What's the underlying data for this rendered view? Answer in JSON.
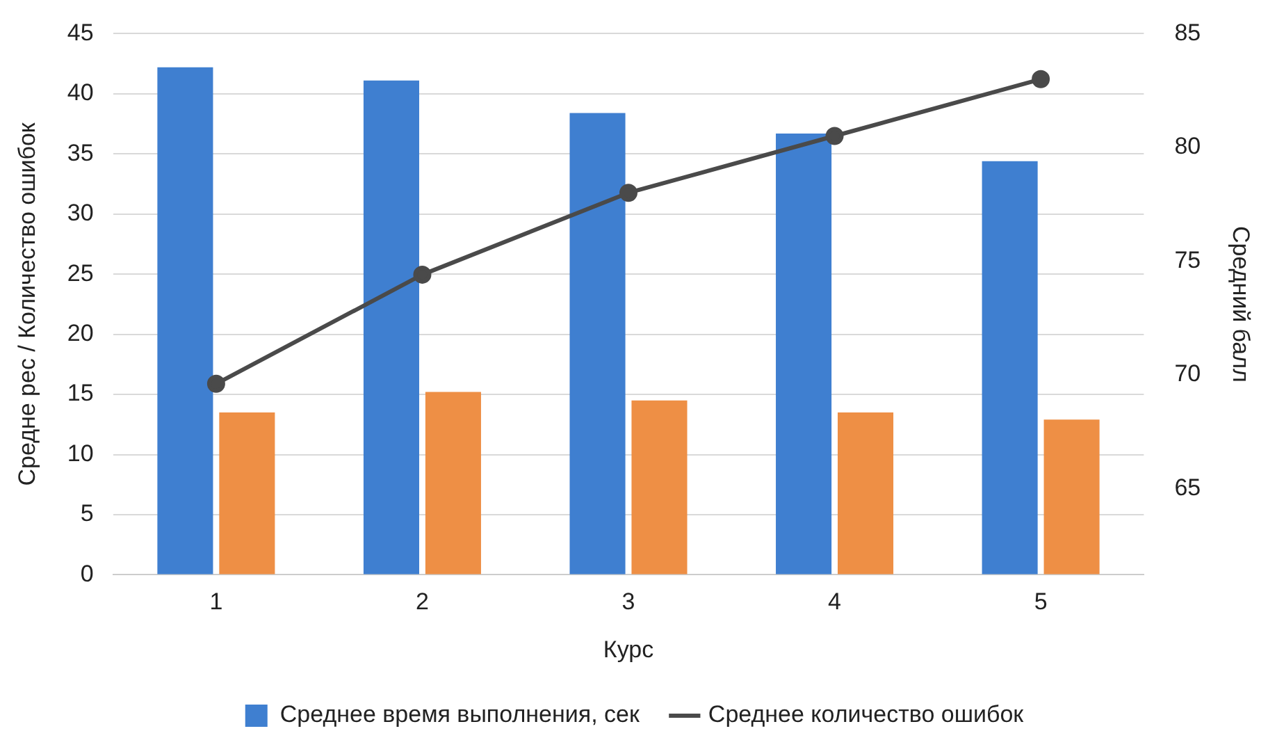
{
  "chart_data": {
    "type": "bar",
    "categories": [
      "1",
      "2",
      "3",
      "4",
      "5"
    ],
    "xlabel": "Курс",
    "ylabel": "Средне рес / Количество ошибок",
    "y2label": "Средний балл",
    "series": [
      {
        "name": "Среднее время выполнения, сек",
        "color": "#3f7fd0",
        "values": [
          42.2,
          41.1,
          38.4,
          36.7,
          34.4
        ]
      },
      {
        "color": "#ee8f45",
        "values": [
          13.5,
          15.2,
          14.5,
          13.5,
          12.9
        ]
      },
      {
        "name": "Среднее количество ошибок",
        "type": "line",
        "axis": "y2",
        "color": "#4a4a4a",
        "values": [
          69.6,
          74.4,
          78.0,
          80.5,
          83.0
        ]
      }
    ],
    "ylim": [
      0,
      45
    ],
    "yticks": [
      0,
      5,
      10,
      15,
      20,
      25,
      30,
      35,
      40,
      45
    ],
    "y2lim": [
      61.2,
      85
    ],
    "y2ticks": [
      65,
      70,
      75,
      80,
      85
    ],
    "grid": "y",
    "legend": "bottom",
    "marker": "circle",
    "line_style": "solid"
  }
}
